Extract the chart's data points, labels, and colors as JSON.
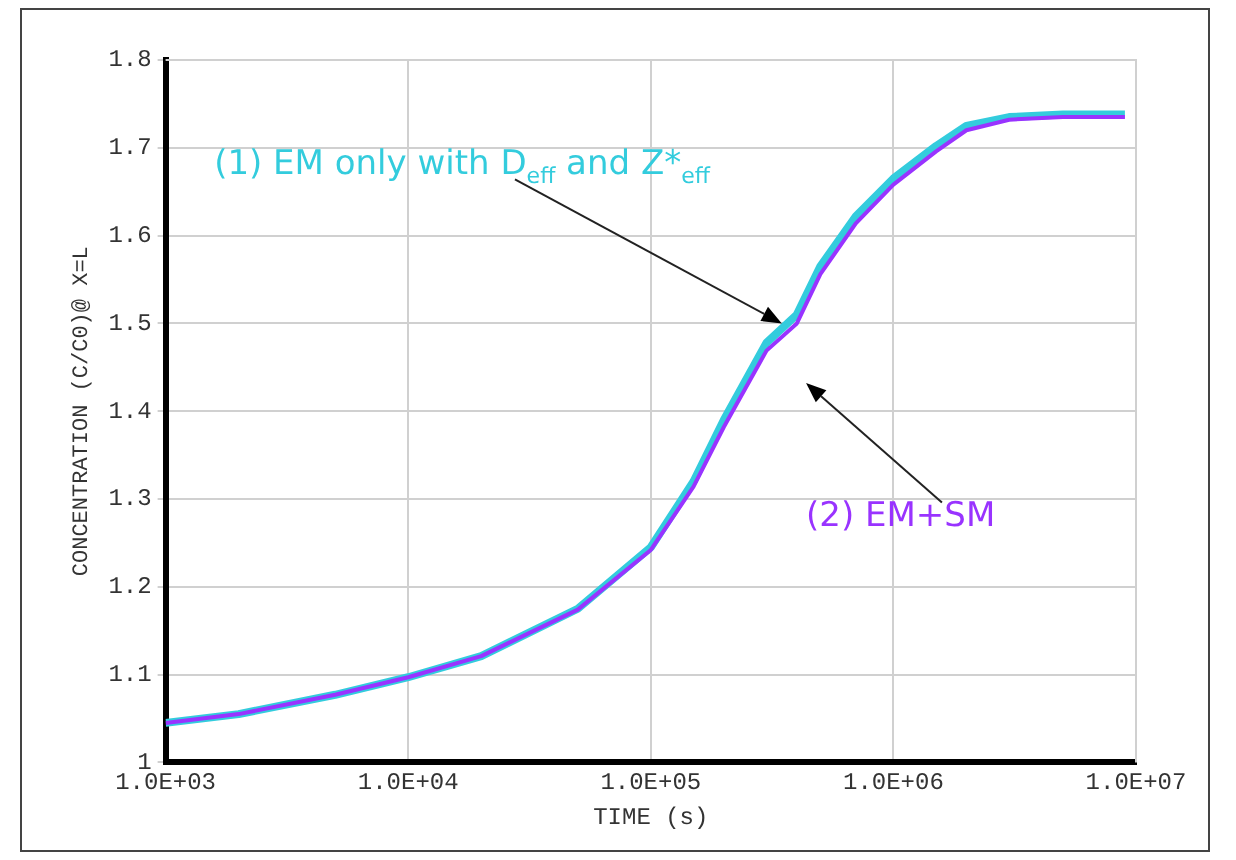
{
  "chart_data": {
    "type": "line",
    "xlabel": "TIME (s)",
    "ylabel": "CONCENTRATION (C/C0)@ X=L",
    "log": "x",
    "grid": true,
    "legend": false,
    "marker": "none",
    "line_style": "solid",
    "x": [
      1000,
      2000,
      5000,
      10000,
      20000,
      50000,
      100000,
      150000,
      200000,
      300000,
      400000,
      500000,
      700000,
      1000000,
      1500000,
      2000000,
      3000000,
      5000000,
      9000000
    ],
    "xlim": [
      1000,
      10000000
    ],
    "xticks": [
      {
        "value": 1000,
        "label": "1.0E+03"
      },
      {
        "value": 10000,
        "label": "1.0E+04"
      },
      {
        "value": 100000,
        "label": "1.0E+05"
      },
      {
        "value": 1000000,
        "label": "1.0E+06"
      },
      {
        "value": 10000000,
        "label": "1.0E+07"
      }
    ],
    "ylim": [
      1,
      1.8
    ],
    "yticks": [
      1,
      1.1,
      1.2,
      1.3,
      1.4,
      1.5,
      1.6,
      1.7,
      1.8
    ],
    "series": [
      {
        "name": "(1) EM only with D$_{eff}$ and Z*$_{eff}$",
        "color": "#33ccdd",
        "values": [
          1.045,
          1.055,
          1.077,
          1.097,
          1.121,
          1.175,
          1.245,
          1.32,
          1.39,
          1.478,
          1.51,
          1.565,
          1.622,
          1.665,
          1.702,
          1.725,
          1.735,
          1.738,
          1.738
        ]
      },
      {
        "name": "(2) EM+SM",
        "color": "#9933ff",
        "values": [
          1.045,
          1.055,
          1.077,
          1.097,
          1.121,
          1.174,
          1.242,
          1.314,
          1.382,
          1.469,
          1.5,
          1.556,
          1.614,
          1.658,
          1.696,
          1.72,
          1.732,
          1.735,
          1.735
        ]
      }
    ]
  }
}
